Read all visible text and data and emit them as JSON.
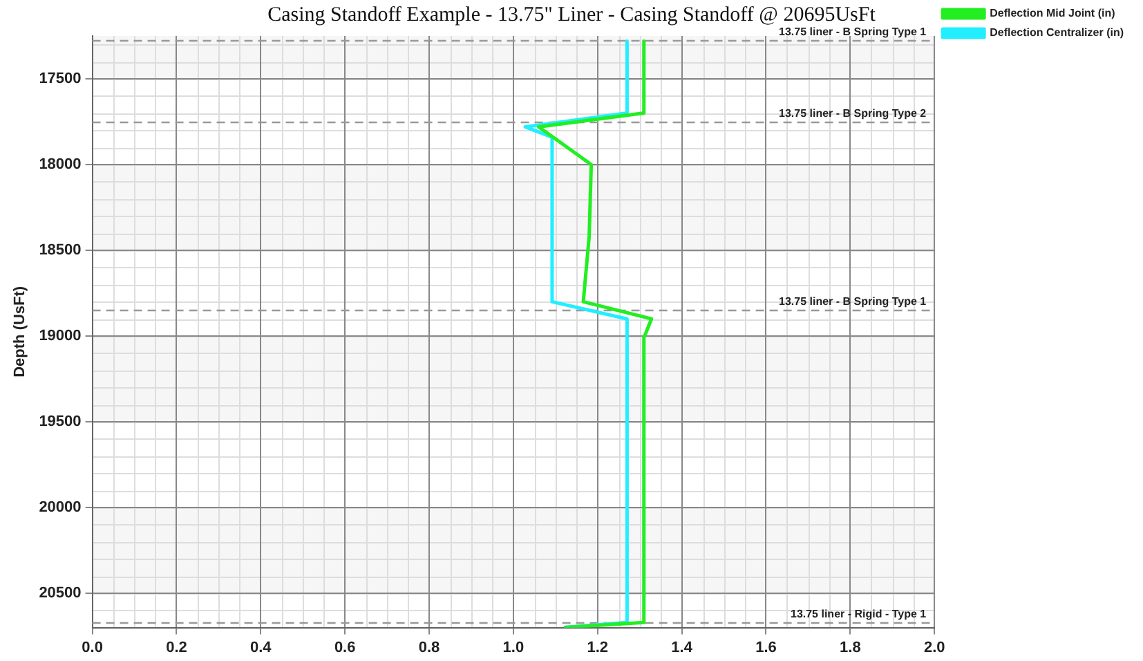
{
  "chart_data": {
    "type": "line",
    "title": "Casing Standoff Example - 13.75\" Liner - Casing Standoff @ 20695UsFt",
    "ylabel": "Depth (UsFt)",
    "series": [
      {
        "name": "Deflection Mid Joint (in)",
        "color": "#22ee22",
        "x": [
          1.31,
          1.31,
          1.06,
          1.185,
          1.18,
          1.166,
          1.328,
          1.31,
          1.31,
          1.12
        ],
        "values": [
          17280,
          17700,
          17780,
          18000,
          18420,
          18800,
          18900,
          19010,
          20670,
          20700
        ]
      },
      {
        "name": "Deflection Centralizer (in)",
        "color": "#22eeff",
        "x": [
          1.27,
          1.27,
          1.028,
          1.092,
          1.092,
          1.27,
          1.27,
          1.12
        ],
        "values": [
          17280,
          17700,
          17780,
          17840,
          18800,
          18900,
          20670,
          20700
        ]
      }
    ],
    "xlim": [
      0,
      2
    ],
    "xticks": [
      {
        "value": 0,
        "label": "0.0"
      },
      {
        "value": 0.2,
        "label": "0.2"
      },
      {
        "value": 0.4,
        "label": "0.4"
      },
      {
        "value": 0.6,
        "label": "0.6"
      },
      {
        "value": 0.8,
        "label": "0.8"
      },
      {
        "value": 1,
        "label": "1.0"
      },
      {
        "value": 1.2,
        "label": "1.2"
      },
      {
        "value": 1.4,
        "label": "1.4"
      },
      {
        "value": 1.6,
        "label": "1.6"
      },
      {
        "value": 1.8,
        "label": "1.8"
      },
      {
        "value": 2,
        "label": "2.0"
      }
    ],
    "ylim": [
      20700,
      17250
    ],
    "yticks": [
      17500,
      18000,
      18500,
      19000,
      19500,
      20000,
      20500
    ],
    "ref_lines": [
      {
        "axis": "y",
        "value": 17275,
        "label": "13.75 liner - B Spring Type 1",
        "color": "#999999",
        "line_style": "dashed"
      },
      {
        "axis": "y",
        "value": 17750,
        "label": "13.75 liner - B Spring Type 2",
        "color": "#999999",
        "line_style": "dashed"
      },
      {
        "axis": "y",
        "value": 18850,
        "label": "13.75 liner - B Spring Type 1",
        "color": "#999999",
        "line_style": "dashed"
      },
      {
        "axis": "y",
        "value": 20670,
        "label": "13.75 liner - Rigid - Type 1",
        "color": "#999999",
        "line_style": "dashed"
      }
    ],
    "grid": true,
    "legend": "top right",
    "marker": "none",
    "line_style": "solid"
  }
}
